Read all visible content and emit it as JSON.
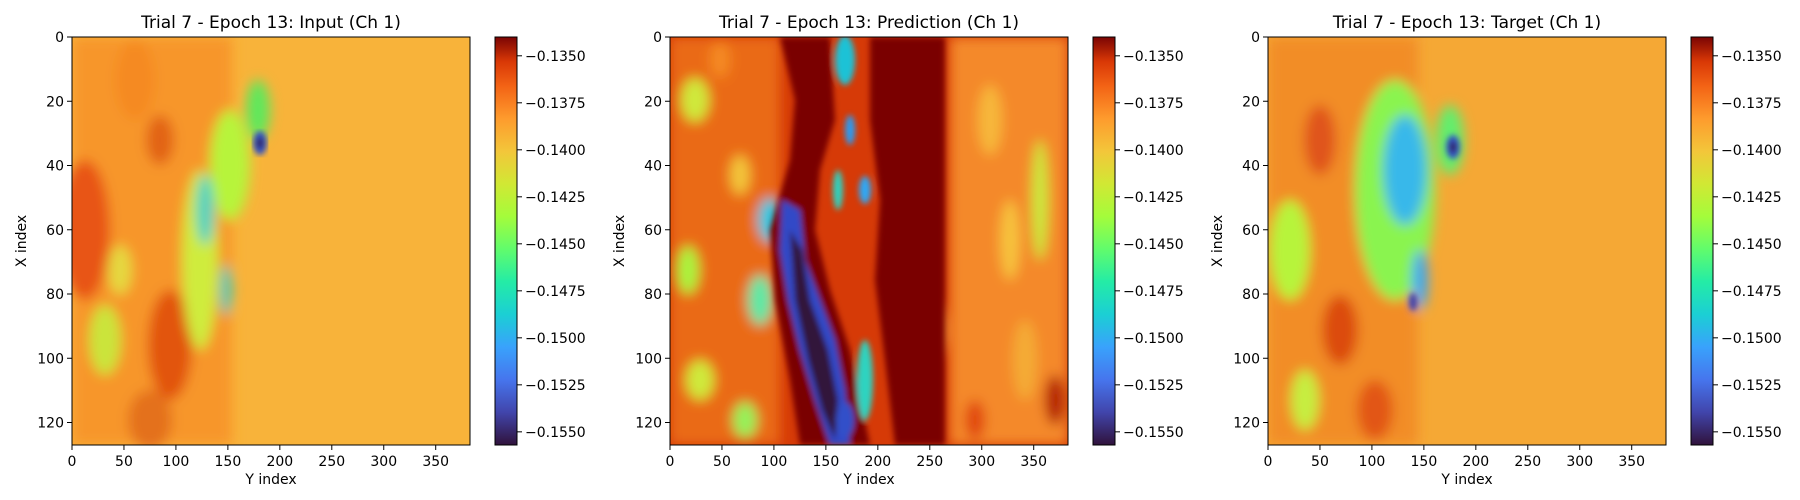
{
  "chart_data": [
    {
      "type": "heatmap",
      "title": "Trial 7 - Epoch 13: Input (Ch 1)",
      "xlabel": "Y index",
      "ylabel": "X index",
      "xlim": [
        0,
        383
      ],
      "ylim": [
        127,
        0
      ],
      "xticks": [
        0,
        50,
        100,
        150,
        200,
        250,
        300,
        350
      ],
      "yticks": [
        0,
        20,
        40,
        60,
        80,
        100,
        120
      ],
      "colorbar": {
        "cmap": "turbo",
        "vmin": -0.1557,
        "vmax": -0.134,
        "ticks": [
          "−0.1350",
          "−0.1375",
          "−0.1400",
          "−0.1425",
          "−0.1450",
          "−0.1475",
          "−0.1500",
          "−0.1525",
          "−0.1550"
        ],
        "tick_values": [
          -0.135,
          -0.1375,
          -0.14,
          -0.1425,
          -0.145,
          -0.1475,
          -0.15,
          -0.1525,
          -0.155
        ]
      }
    },
    {
      "type": "heatmap",
      "title": "Trial 7 - Epoch 13: Prediction (Ch 1)",
      "xlabel": "Y index",
      "ylabel": "X index",
      "xlim": [
        0,
        383
      ],
      "ylim": [
        127,
        0
      ],
      "xticks": [
        0,
        50,
        100,
        150,
        200,
        250,
        300,
        350
      ],
      "yticks": [
        0,
        20,
        40,
        60,
        80,
        100,
        120
      ],
      "colorbar": {
        "cmap": "turbo",
        "vmin": -0.1557,
        "vmax": -0.134,
        "ticks": [
          "−0.1350",
          "−0.1375",
          "−0.1400",
          "−0.1425",
          "−0.1450",
          "−0.1475",
          "−0.1500",
          "−0.1525",
          "−0.1550"
        ],
        "tick_values": [
          -0.135,
          -0.1375,
          -0.14,
          -0.1425,
          -0.145,
          -0.1475,
          -0.15,
          -0.1525,
          -0.155
        ]
      }
    },
    {
      "type": "heatmap",
      "title": "Trial 7 - Epoch 13: Target (Ch 1)",
      "xlabel": "Y index",
      "ylabel": "X index",
      "xlim": [
        0,
        383
      ],
      "ylim": [
        127,
        0
      ],
      "xticks": [
        0,
        50,
        100,
        150,
        200,
        250,
        300,
        350
      ],
      "yticks": [
        0,
        20,
        40,
        60,
        80,
        100,
        120
      ],
      "colorbar": {
        "cmap": "turbo",
        "vmin": -0.1557,
        "vmax": -0.134,
        "ticks": [
          "−0.1350",
          "−0.1375",
          "−0.1400",
          "−0.1425",
          "−0.1450",
          "−0.1475",
          "−0.1500",
          "−0.1525",
          "−0.1550"
        ],
        "tick_values": [
          -0.135,
          -0.1375,
          -0.14,
          -0.1425,
          -0.145,
          -0.1475,
          -0.15,
          -0.1525,
          -0.155
        ]
      }
    }
  ]
}
